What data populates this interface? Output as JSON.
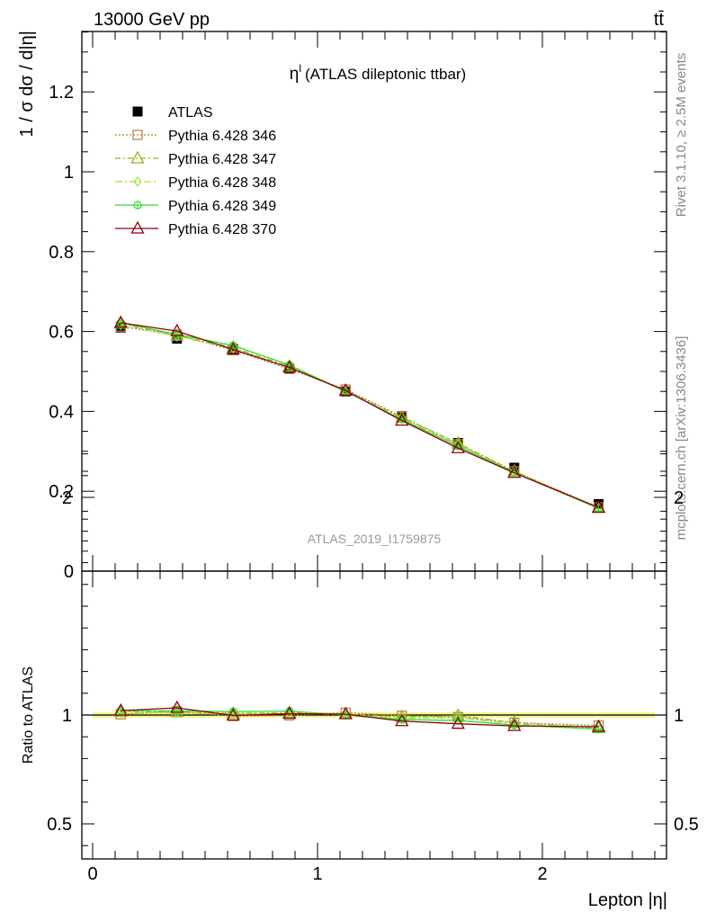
{
  "header": {
    "energy_label": "13000 GeV pp",
    "process_label": "tt̄"
  },
  "side_text": {
    "rivet": "Rivet 3.1.10, ≥ 2.5M events",
    "source": "mcplots.cern.ch [arXiv:1306.3436]"
  },
  "chart_data": [
    {
      "type": "scatter",
      "panel": "main",
      "title_symbol": "η",
      "title_superscript": "l",
      "title_rest": "(ATLAS dileptonic ttbar)",
      "ylabel": "1 / σ  dσ / d|η|",
      "analysis_label": "ATLAS_2019_I1759875",
      "ylim": [
        0,
        1.35
      ],
      "xlim": [
        -0.05,
        2.55
      ],
      "y_ticks": [
        "0",
        "0.2",
        "0.4",
        "0.6",
        "0.8",
        "1",
        "1.2"
      ],
      "y_tick_values": [
        0,
        0.2,
        0.4,
        0.6,
        0.8,
        1.0,
        1.2
      ],
      "x": [
        0.125,
        0.375,
        0.625,
        0.875,
        1.125,
        1.375,
        1.625,
        1.875,
        2.25
      ],
      "series": [
        {
          "name": "ATLAS",
          "color": "#000000",
          "marker": "square-filled",
          "line": "none",
          "values": [
            0.61,
            0.582,
            0.556,
            0.507,
            0.45,
            0.388,
            0.321,
            0.259,
            0.168
          ]
        },
        {
          "name": "Pythia 6.428 346",
          "color": "#b5803b",
          "marker": "square-open",
          "line": "dotted",
          "values": [
            0.612,
            0.592,
            0.553,
            0.506,
            0.455,
            0.387,
            0.318,
            0.25,
            0.16
          ]
        },
        {
          "name": "Pythia 6.428 347",
          "color": "#8fb31f",
          "marker": "triangle-open",
          "line": "dashdot",
          "values": [
            0.62,
            0.59,
            0.56,
            0.512,
            0.452,
            0.385,
            0.32,
            0.25,
            0.158
          ]
        },
        {
          "name": "Pythia 6.428 348",
          "color": "#9be639",
          "marker": "diamond-open",
          "line": "dashdot2",
          "values": [
            0.617,
            0.588,
            0.558,
            0.51,
            0.451,
            0.382,
            0.317,
            0.248,
            0.159
          ]
        },
        {
          "name": "Pythia 6.428 349",
          "color": "#33dd33",
          "marker": "circle-cross",
          "line": "solid",
          "values": [
            0.622,
            0.593,
            0.565,
            0.516,
            0.45,
            0.38,
            0.313,
            0.247,
            0.157
          ]
        },
        {
          "name": "Pythia 6.428 370",
          "color": "#8b0010",
          "marker": "triangle-open",
          "line": "solid",
          "values": [
            0.622,
            0.601,
            0.555,
            0.51,
            0.452,
            0.377,
            0.308,
            0.246,
            0.159
          ]
        }
      ]
    },
    {
      "type": "line",
      "panel": "ratio",
      "ylabel": "Ratio to ATLAS",
      "xlabel": "Lepton |η|",
      "ylim": [
        0.35,
        2.25
      ],
      "y_ticks": [
        "0.5",
        "1",
        "2"
      ],
      "y_tick_values": [
        0.5,
        1,
        2
      ],
      "x_ticks": [
        "0",
        "1",
        "2"
      ],
      "x_tick_values": [
        0,
        1,
        2
      ],
      "band_color": "#f5f58c",
      "x": [
        0.125,
        0.375,
        0.625,
        0.875,
        1.125,
        1.375,
        1.625,
        1.875,
        2.25
      ],
      "series": [
        {
          "name": "Pythia 6.428 346",
          "values": [
            1.003,
            1.017,
            0.995,
            0.998,
            1.011,
            0.997,
            0.991,
            0.965,
            0.952
          ]
        },
        {
          "name": "Pythia 6.428 347",
          "values": [
            1.016,
            1.014,
            1.007,
            1.01,
            1.004,
            0.992,
            0.997,
            0.965,
            0.94
          ]
        },
        {
          "name": "Pythia 6.428 348",
          "values": [
            1.011,
            1.01,
            1.004,
            1.006,
            1.002,
            0.985,
            0.988,
            0.958,
            0.946
          ]
        },
        {
          "name": "Pythia 6.428 349",
          "values": [
            1.02,
            1.019,
            1.016,
            1.018,
            1.0,
            0.979,
            0.975,
            0.954,
            0.935
          ]
        },
        {
          "name": "Pythia 6.428 370",
          "values": [
            1.02,
            1.033,
            0.998,
            1.006,
            1.004,
            0.972,
            0.96,
            0.95,
            0.946
          ]
        }
      ]
    }
  ]
}
